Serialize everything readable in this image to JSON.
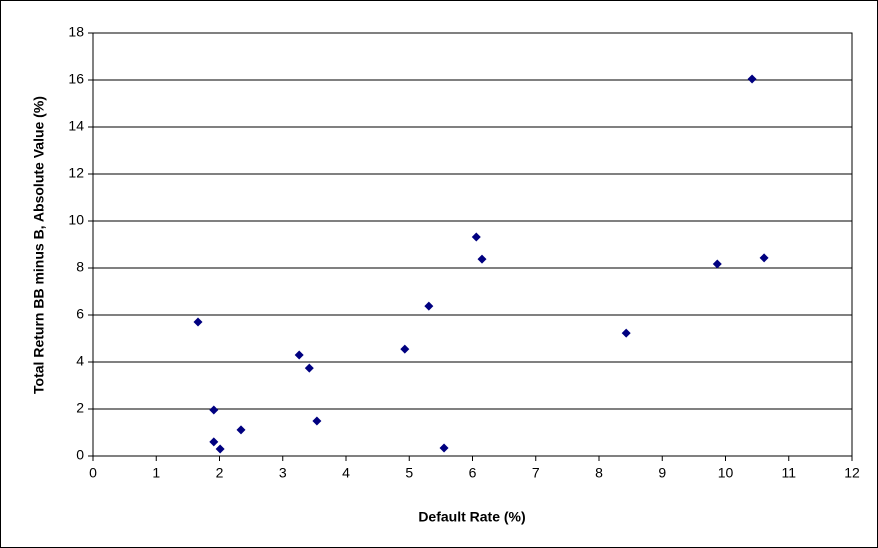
{
  "chart_data": {
    "type": "scatter",
    "x_label": "Default Rate (%)",
    "y_label": "Total Return BB minus B, Absolute Value (%)",
    "series": [
      {
        "color": "#000080",
        "x": [
          1.66,
          1.91,
          1.91,
          2.01,
          2.34,
          3.26,
          3.42,
          3.54,
          4.93,
          5.31,
          5.55,
          6.06,
          6.15,
          8.43,
          9.87,
          10.61,
          10.42
        ],
        "values": [
          5.7,
          1.96,
          0.6,
          0.3,
          1.11,
          4.3,
          3.74,
          1.49,
          4.55,
          6.38,
          0.34,
          9.32,
          8.38,
          5.23,
          8.17,
          8.43,
          16.04
        ]
      }
    ],
    "xlim": [
      0,
      12
    ],
    "xticks": [
      0,
      1,
      2,
      3,
      4,
      5,
      6,
      7,
      8,
      9,
      10,
      11,
      12
    ],
    "ylim": [
      0,
      18
    ],
    "yticks": [
      0,
      2,
      4,
      6,
      8,
      10,
      12,
      14,
      16,
      18
    ],
    "grid": true
  }
}
